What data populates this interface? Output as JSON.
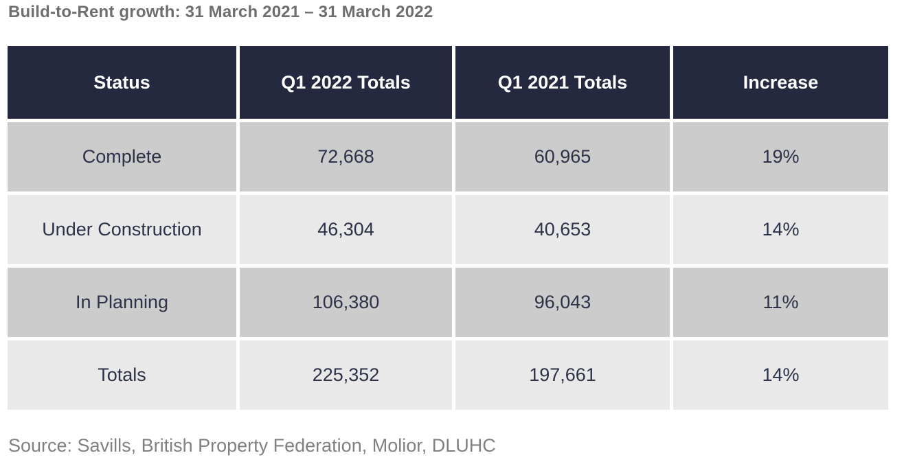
{
  "title": "Build-to-Rent growth: 31 March 2021 – 31 March 2022",
  "source": "Source: Savills, British Property Federation, Molior, DLUHC",
  "colors": {
    "header_bg": "#242940",
    "header_text": "#ffffff",
    "row_dark": "#cccccc",
    "row_light": "#e9e9e9",
    "cell_text": "#2d3248",
    "title_text": "#6e6e6e",
    "source_text": "#808080"
  },
  "chart_data": {
    "type": "table",
    "title": "Build-to-Rent growth: 31 March 2021 – 31 March 2022",
    "columns": [
      "Status",
      "Q1 2022 Totals",
      "Q1 2021 Totals",
      "Increase"
    ],
    "rows": [
      [
        "Complete",
        "72,668",
        "60,965",
        "19%"
      ],
      [
        "Under Construction",
        "46,304",
        "40,653",
        "14%"
      ],
      [
        "In Planning",
        "106,380",
        "96,043",
        "11%"
      ],
      [
        "Totals",
        "225,352",
        "197,661",
        "14%"
      ]
    ],
    "source": "Source: Savills, British Property Federation, Molior, DLUHC"
  }
}
